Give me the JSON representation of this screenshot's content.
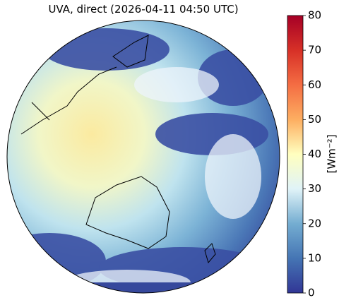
{
  "title": "UVA, direct (2026-04-11 04:50 UTC)",
  "colorbar": {
    "label": "[Wm⁻²]",
    "lim": [
      0,
      80
    ],
    "ticks": [
      0,
      10,
      20,
      30,
      40,
      50,
      60,
      70,
      80
    ]
  }
}
